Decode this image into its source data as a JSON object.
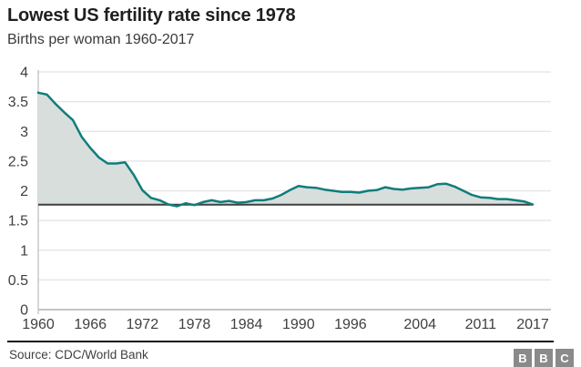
{
  "header": {
    "title": "Lowest US fertility rate since 1978",
    "subtitle": "Births per woman 1960-2017"
  },
  "footer": {
    "source": "Source: CDC/World Bank",
    "logo_letters": [
      "B",
      "B",
      "C"
    ]
  },
  "colors": {
    "line": "#0f7d7b",
    "area_fill": "#d7dedc",
    "grid": "#e7e7e7",
    "zero_line": "#b0b0b0",
    "y_axis_line": "#c9c9c9",
    "reference_line": "#404040",
    "tick_text": "#404040",
    "title_text": "#1f1f1f",
    "subtitle_text": "#3a3a3a",
    "separator": "#141414",
    "logo_bg": "#8a8a8a"
  },
  "chart_data": {
    "type": "area",
    "title": "Lowest US fertility rate since 1978",
    "subtitle": "Births per woman 1960-2017",
    "series_name": "Births per woman",
    "x": [
      1960,
      1961,
      1962,
      1963,
      1964,
      1965,
      1966,
      1967,
      1968,
      1969,
      1970,
      1971,
      1972,
      1973,
      1974,
      1975,
      1976,
      1977,
      1978,
      1979,
      1980,
      1981,
      1982,
      1983,
      1984,
      1985,
      1986,
      1987,
      1988,
      1989,
      1990,
      1991,
      1992,
      1993,
      1994,
      1995,
      1996,
      1997,
      1998,
      1999,
      2000,
      2001,
      2002,
      2003,
      2004,
      2005,
      2006,
      2007,
      2008,
      2009,
      2010,
      2011,
      2012,
      2013,
      2014,
      2015,
      2016,
      2017
    ],
    "values": [
      3.65,
      3.62,
      3.46,
      3.32,
      3.19,
      2.91,
      2.72,
      2.56,
      2.46,
      2.46,
      2.48,
      2.27,
      2.01,
      1.88,
      1.84,
      1.77,
      1.74,
      1.79,
      1.76,
      1.81,
      1.84,
      1.81,
      1.83,
      1.8,
      1.81,
      1.84,
      1.84,
      1.87,
      1.93,
      2.01,
      2.08,
      2.06,
      2.05,
      2.02,
      2.0,
      1.98,
      1.98,
      1.97,
      2.0,
      2.01,
      2.06,
      2.03,
      2.02,
      2.04,
      2.05,
      2.06,
      2.11,
      2.12,
      2.07,
      2.0,
      1.93,
      1.89,
      1.88,
      1.86,
      1.86,
      1.84,
      1.82,
      1.77
    ],
    "xlabel": "",
    "ylabel": "",
    "ylim": [
      0,
      4
    ],
    "y_ticks": [
      0,
      0.5,
      1,
      1.5,
      2,
      2.5,
      3,
      3.5,
      4
    ],
    "x_ticks": [
      1960,
      1966,
      1972,
      1978,
      1984,
      1990,
      1996,
      2004,
      2011,
      2017
    ],
    "reference_line": 1.765,
    "grid": true,
    "legend": false
  }
}
